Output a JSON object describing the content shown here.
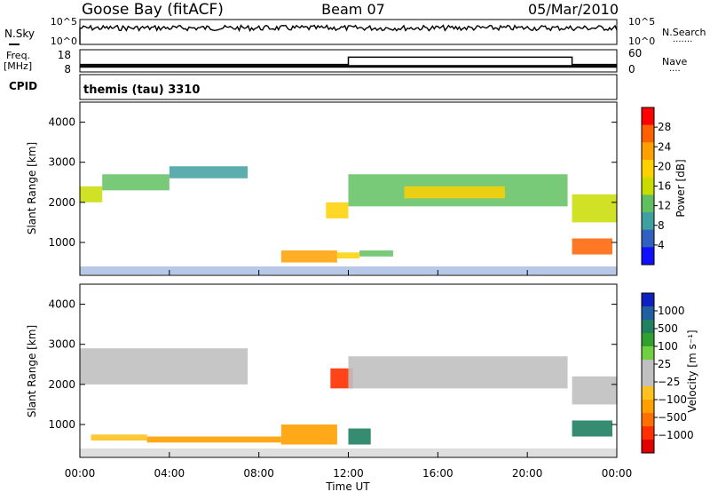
{
  "header": {
    "station": "Goose Bay (fitACF)",
    "beam": "Beam 07",
    "date": "05/Mar/2010"
  },
  "noise_panel": {
    "left_label": "N.Sky",
    "right_label": "N.Search",
    "right_marker": "·······",
    "yticks_left": [
      "10^5",
      "10^0"
    ],
    "yticks_right": [
      "10^5",
      "10^0"
    ]
  },
  "freq_panel": {
    "left_label": "Freq.",
    "left_unit": "[MHz]",
    "right_label": "Nave",
    "right_marker": "····",
    "yticks_left": [
      "18",
      "8"
    ],
    "yticks_right": [
      "60",
      "0"
    ]
  },
  "cpid_panel": {
    "label": "CPID",
    "text": "themis (tau) 3310"
  },
  "power_panel": {
    "ylabel": "Slant Range [km]",
    "yticks": [
      "4000",
      "3000",
      "2000",
      "1000"
    ],
    "colorbar_label": "Power [dB]",
    "colorbar_ticks": [
      "28",
      "24",
      "20",
      "16",
      "12",
      "8",
      "4"
    ],
    "colorbar_colors": [
      "#ff0000",
      "#ff6000",
      "#ffa000",
      "#ffd000",
      "#c8dc00",
      "#60c060",
      "#40a0a0",
      "#3060c0",
      "#1010ff"
    ]
  },
  "velocity_panel": {
    "ylabel": "Slant Range [km]",
    "yticks": [
      "4000",
      "3000",
      "2000",
      "1000"
    ],
    "colorbar_label": "Velocity [m s⁻¹]",
    "colorbar_ticks": [
      "1000",
      "500",
      "100",
      "25",
      "−25",
      "−100",
      "−500",
      "−1000"
    ],
    "colorbar_colors": [
      "#1020c0",
      "#2060a0",
      "#208060",
      "#30a030",
      "#70d040",
      "#c0c0c0",
      "#c0c0c0",
      "#ffc020",
      "#ffa000",
      "#ff7000",
      "#ff3000",
      "#e00000"
    ]
  },
  "x_axis": {
    "ticks": [
      "00:00",
      "04:00",
      "08:00",
      "12:00",
      "16:00",
      "20:00",
      "00:00"
    ],
    "label": "Time UT"
  },
  "chart_data": {
    "type": "heatmap",
    "x_range_hours": [
      0,
      24
    ],
    "y_range_km": [
      180,
      4500
    ],
    "noise_sky_level_log": 3.3,
    "frequency_mhz": [
      {
        "start_h": 0,
        "end_h": 24,
        "value": 10.5
      }
    ],
    "nave": [
      {
        "start_h": 0,
        "end_h": 12,
        "value": 20
      },
      {
        "start_h": 12,
        "end_h": 22,
        "value": 40
      },
      {
        "start_h": 22,
        "end_h": 24,
        "value": 20
      }
    ],
    "power_regions_db": [
      {
        "t0": 0.0,
        "t1": 1.0,
        "r0": 2000,
        "r1": 2400,
        "value": 14
      },
      {
        "t0": 1.0,
        "t1": 4.0,
        "r0": 2300,
        "r1": 2700,
        "value": 10
      },
      {
        "t0": 4.0,
        "t1": 7.5,
        "r0": 2600,
        "r1": 2900,
        "value": 8
      },
      {
        "t0": 9.0,
        "t1": 11.5,
        "r0": 500,
        "r1": 800,
        "value": 24
      },
      {
        "t0": 11.5,
        "t1": 12.5,
        "r0": 600,
        "r1": 750,
        "value": 20
      },
      {
        "t0": 12.5,
        "t1": 14.0,
        "r0": 650,
        "r1": 800,
        "value": 12
      },
      {
        "t0": 11.0,
        "t1": 12.0,
        "r0": 1600,
        "r1": 2000,
        "value": 18
      },
      {
        "t0": 12.0,
        "t1": 21.8,
        "r0": 1900,
        "r1": 2700,
        "value": 12
      },
      {
        "t0": 14.5,
        "t1": 19.0,
        "r0": 2100,
        "r1": 2400,
        "value": 18
      },
      {
        "t0": 22.0,
        "t1": 23.8,
        "r0": 700,
        "r1": 1100,
        "value": 26
      },
      {
        "t0": 22.0,
        "t1": 24.0,
        "r0": 1500,
        "r1": 2200,
        "value": 14
      }
    ],
    "velocity_regions_ms": [
      {
        "t0": 0.0,
        "t1": 7.5,
        "r0": 2000,
        "r1": 2900,
        "value": 0
      },
      {
        "t0": 0.5,
        "t1": 3.0,
        "r0": 600,
        "r1": 750,
        "value": -100
      },
      {
        "t0": 3.0,
        "t1": 9.0,
        "r0": 550,
        "r1": 700,
        "value": -200
      },
      {
        "t0": 9.0,
        "t1": 11.5,
        "r0": 500,
        "r1": 1000,
        "value": -150
      },
      {
        "t0": 11.2,
        "t1": 12.2,
        "r0": 1900,
        "r1": 2400,
        "value": -700
      },
      {
        "t0": 12.0,
        "t1": 13.0,
        "r0": 500,
        "r1": 900,
        "value": 150
      },
      {
        "t0": 12.0,
        "t1": 21.8,
        "r0": 1900,
        "r1": 2700,
        "value": 0
      },
      {
        "t0": 22.0,
        "t1": 23.8,
        "r0": 700,
        "r1": 1100,
        "value": 150
      },
      {
        "t0": 22.0,
        "t1": 24.0,
        "r0": 1500,
        "r1": 2200,
        "value": 0
      }
    ]
  }
}
